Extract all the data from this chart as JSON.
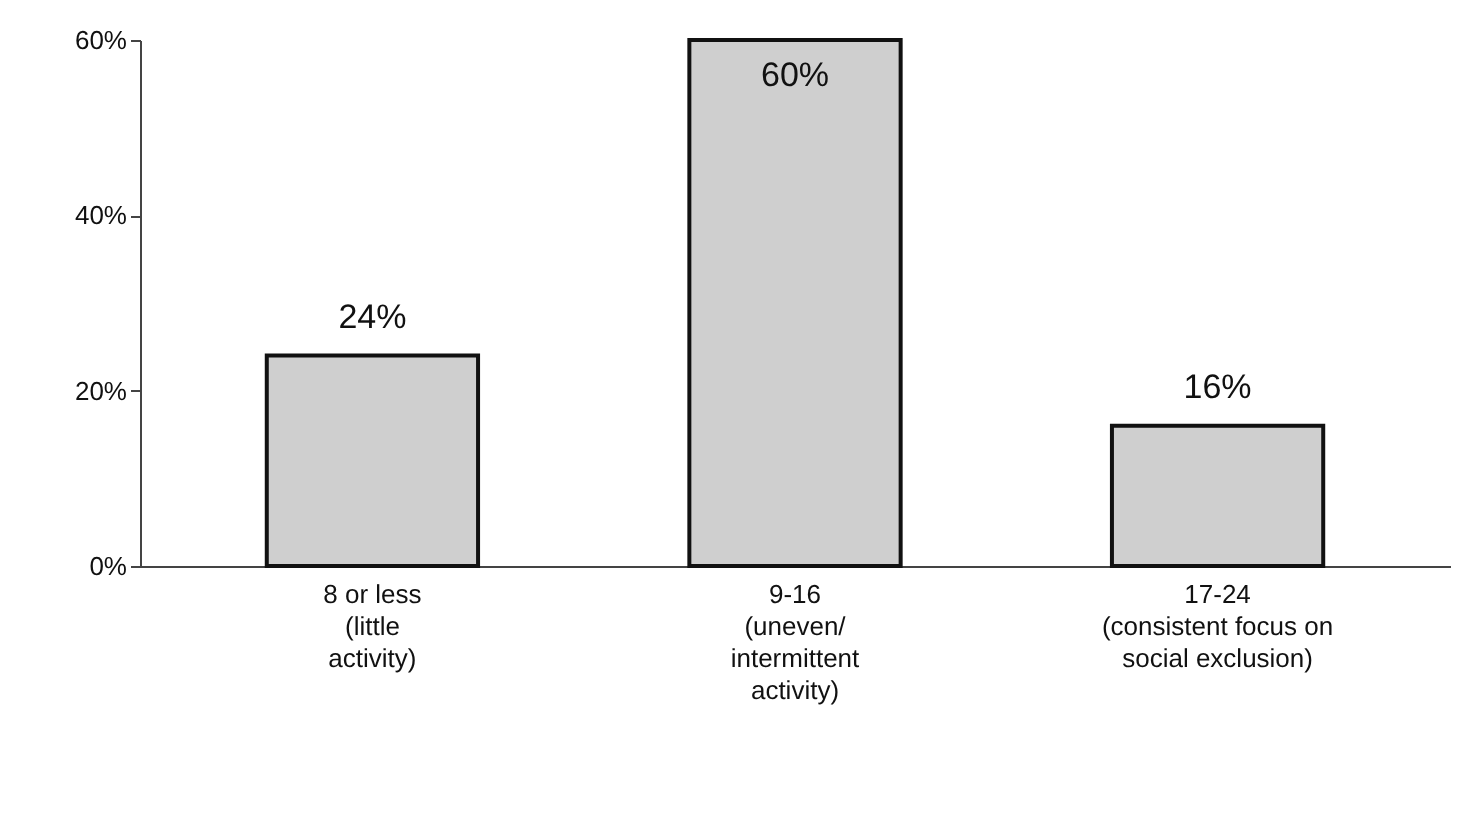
{
  "chart_data": {
    "type": "bar",
    "categories": [
      "8 or less\n(little\nactivity)",
      "9-16\n\n(uneven/\nintermittent\nactivity)",
      "17-24\n(consistent focus on\nsocial exclusion)"
    ],
    "values": [
      24,
      60,
      16
    ],
    "color": "#cfcfcf",
    "ylim": [
      0,
      60
    ],
    "yticks": [
      {
        "value": 0,
        "label": "0%"
      },
      {
        "value": 20,
        "label": "20%"
      },
      {
        "value": 40,
        "label": "40%"
      },
      {
        "value": 60,
        "label": "60%"
      }
    ],
    "value_labels": [
      "24%",
      "60%",
      "16%"
    ],
    "grid": false
  }
}
